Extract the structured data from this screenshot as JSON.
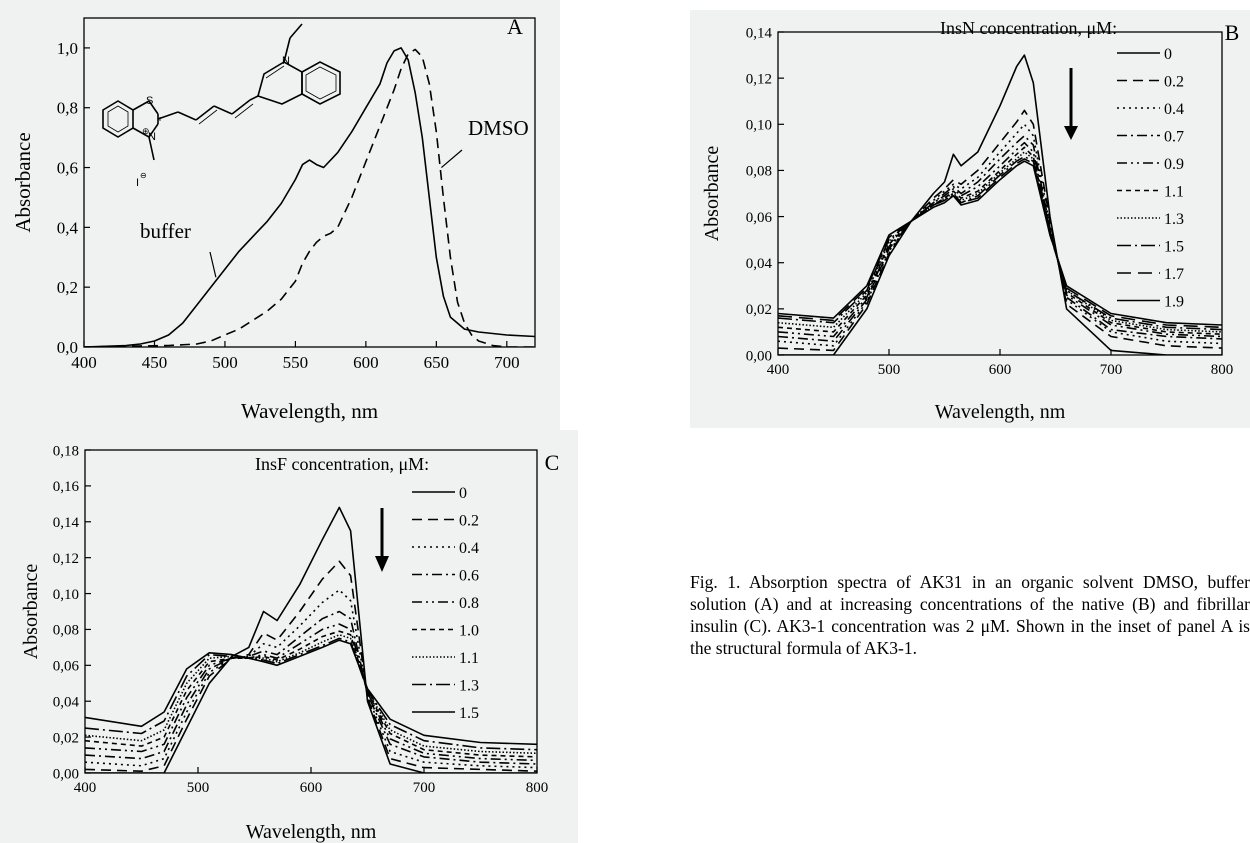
{
  "caption": "Fig. 1. Absorption spectra of AK31 in an organic solvent DMSO, buffer solution (A) and at increasing concentrations of the native (B) and fibrillar insulin (C). AK3-1 concentration was 2 μM. Shown in the inset of panel A is the structural formula of AK3-1.",
  "chart_data": [
    {
      "id": "A",
      "type": "line",
      "panel_label": "A",
      "xlabel": "Wavelength, nm",
      "ylabel": "Absorbance",
      "xlim": [
        400,
        720
      ],
      "ylim": [
        0,
        1.1
      ],
      "x_ticks": [
        "400",
        "450",
        "500",
        "550",
        "600",
        "650",
        "700"
      ],
      "y_ticks": [
        "0,0",
        "0,2",
        "0,4",
        "0,6",
        "0,8",
        "1,0"
      ],
      "x_tick_values": [
        400,
        450,
        500,
        550,
        600,
        650,
        700
      ],
      "y_tick_values": [
        0,
        0.2,
        0.4,
        0.6,
        0.8,
        1.0
      ],
      "annotations": [
        {
          "text": "buffer",
          "series": "buffer",
          "x": 495,
          "y": 0.24
        },
        {
          "text": "DMSO",
          "series": "DMSO",
          "x": 655,
          "y": 0.6
        }
      ],
      "inset": "structural formula of AK3-1",
      "series": [
        {
          "name": "buffer",
          "dash": "solid",
          "x": [
            400,
            430,
            440,
            450,
            460,
            470,
            480,
            490,
            500,
            510,
            520,
            530,
            540,
            550,
            555,
            560,
            565,
            570,
            580,
            590,
            600,
            610,
            615,
            620,
            625,
            630,
            635,
            640,
            645,
            650,
            655,
            660,
            670,
            680,
            690,
            700,
            720
          ],
          "y": [
            0,
            0.005,
            0.01,
            0.02,
            0.04,
            0.08,
            0.14,
            0.2,
            0.26,
            0.32,
            0.37,
            0.42,
            0.48,
            0.56,
            0.61,
            0.625,
            0.61,
            0.6,
            0.65,
            0.72,
            0.8,
            0.88,
            0.95,
            0.99,
            1.0,
            0.96,
            0.85,
            0.7,
            0.5,
            0.3,
            0.17,
            0.1,
            0.06,
            0.05,
            0.045,
            0.04,
            0.035
          ]
        },
        {
          "name": "DMSO",
          "dash": "dashed",
          "x": [
            400,
            460,
            480,
            490,
            500,
            510,
            520,
            530,
            540,
            550,
            555,
            560,
            565,
            570,
            575,
            580,
            590,
            600,
            610,
            620,
            625,
            630,
            635,
            640,
            645,
            650,
            655,
            660,
            665,
            670,
            675,
            680,
            690,
            700,
            720
          ],
          "y": [
            0,
            0.005,
            0.01,
            0.02,
            0.04,
            0.06,
            0.09,
            0.12,
            0.16,
            0.22,
            0.28,
            0.32,
            0.35,
            0.37,
            0.38,
            0.4,
            0.5,
            0.62,
            0.74,
            0.86,
            0.93,
            0.98,
            0.995,
            0.97,
            0.88,
            0.72,
            0.5,
            0.3,
            0.15,
            0.08,
            0.04,
            0.02,
            0.005,
            0,
            0
          ]
        }
      ]
    },
    {
      "id": "B",
      "type": "line",
      "panel_label": "B",
      "legend_title": "InsN concentration, μM:",
      "xlabel": "Wavelength, nm",
      "ylabel": "Absorbance",
      "xlim": [
        400,
        800
      ],
      "ylim": [
        0,
        0.14
      ],
      "x_ticks": [
        "400",
        "500",
        "600",
        "700",
        "800"
      ],
      "y_ticks": [
        "0,00",
        "0,02",
        "0,04",
        "0,06",
        "0,08",
        "0,10",
        "0,12",
        "0,14"
      ],
      "x_tick_values": [
        400,
        500,
        600,
        700,
        800
      ],
      "y_tick_values": [
        0,
        0.02,
        0.04,
        0.06,
        0.08,
        0.1,
        0.12,
        0.14
      ],
      "x": [
        400,
        450,
        480,
        500,
        520,
        540,
        550,
        558,
        565,
        580,
        600,
        615,
        622,
        630,
        645,
        660,
        700,
        750,
        800
      ],
      "series": [
        {
          "name": "0",
          "dash": "solid",
          "y": [
            0.0,
            0.0,
            0.02,
            0.043,
            0.058,
            0.07,
            0.075,
            0.087,
            0.082,
            0.088,
            0.108,
            0.125,
            0.13,
            0.118,
            0.06,
            0.02,
            0.002,
            0.0,
            0.0
          ]
        },
        {
          "name": "0.2",
          "dash": "dashed",
          "y": [
            0.003,
            0.002,
            0.022,
            0.044,
            0.058,
            0.068,
            0.072,
            0.076,
            0.074,
            0.08,
            0.092,
            0.101,
            0.106,
            0.1,
            0.058,
            0.022,
            0.008,
            0.004,
            0.003
          ]
        },
        {
          "name": "0.4",
          "dash": "dotted",
          "y": [
            0.006,
            0.004,
            0.023,
            0.045,
            0.058,
            0.067,
            0.071,
            0.074,
            0.072,
            0.077,
            0.088,
            0.096,
            0.1,
            0.095,
            0.056,
            0.024,
            0.01,
            0.006,
            0.005
          ]
        },
        {
          "name": "0.7",
          "dash": "dashdot",
          "y": [
            0.008,
            0.006,
            0.024,
            0.046,
            0.058,
            0.066,
            0.07,
            0.073,
            0.07,
            0.075,
            0.085,
            0.092,
            0.095,
            0.091,
            0.055,
            0.025,
            0.011,
            0.008,
            0.007
          ]
        },
        {
          "name": "0.9",
          "dash": "dashdotdot",
          "y": [
            0.01,
            0.008,
            0.025,
            0.047,
            0.058,
            0.066,
            0.069,
            0.072,
            0.069,
            0.073,
            0.082,
            0.089,
            0.092,
            0.088,
            0.054,
            0.026,
            0.013,
            0.009,
            0.008
          ]
        },
        {
          "name": "1.1",
          "dash": "shortdash",
          "y": [
            0.012,
            0.01,
            0.026,
            0.048,
            0.058,
            0.065,
            0.068,
            0.071,
            0.068,
            0.071,
            0.08,
            0.087,
            0.09,
            0.086,
            0.054,
            0.027,
            0.014,
            0.01,
            0.009
          ]
        },
        {
          "name": "1.3",
          "dash": "densedot",
          "y": [
            0.014,
            0.012,
            0.027,
            0.049,
            0.058,
            0.065,
            0.068,
            0.07,
            0.067,
            0.07,
            0.079,
            0.085,
            0.088,
            0.085,
            0.053,
            0.028,
            0.015,
            0.011,
            0.01
          ]
        },
        {
          "name": "1.5",
          "dash": "longdashdot",
          "y": [
            0.016,
            0.014,
            0.028,
            0.05,
            0.058,
            0.065,
            0.067,
            0.07,
            0.066,
            0.069,
            0.078,
            0.084,
            0.086,
            0.084,
            0.053,
            0.028,
            0.016,
            0.012,
            0.011
          ]
        },
        {
          "name": "1.7",
          "dash": "longdash",
          "y": [
            0.017,
            0.015,
            0.029,
            0.051,
            0.058,
            0.065,
            0.067,
            0.069,
            0.066,
            0.068,
            0.077,
            0.083,
            0.085,
            0.083,
            0.052,
            0.029,
            0.017,
            0.013,
            0.012
          ]
        },
        {
          "name": "1.9",
          "dash": "solid",
          "y": [
            0.018,
            0.016,
            0.03,
            0.052,
            0.058,
            0.064,
            0.066,
            0.069,
            0.065,
            0.067,
            0.076,
            0.082,
            0.084,
            0.082,
            0.052,
            0.03,
            0.018,
            0.014,
            0.013
          ]
        }
      ]
    },
    {
      "id": "C",
      "type": "line",
      "panel_label": "C",
      "legend_title": "InsF concentration, μM:",
      "xlabel": "Wavelength, nm",
      "ylabel": "Absorbance",
      "xlim": [
        400,
        800
      ],
      "ylim": [
        0,
        0.18
      ],
      "x_ticks": [
        "400",
        "500",
        "600",
        "700",
        "800"
      ],
      "y_ticks": [
        "0,00",
        "0,02",
        "0,04",
        "0,06",
        "0,08",
        "0,10",
        "0,12",
        "0,14",
        "0,16",
        "0,18"
      ],
      "x_tick_values": [
        400,
        500,
        600,
        700,
        800
      ],
      "y_tick_values": [
        0,
        0.02,
        0.04,
        0.06,
        0.08,
        0.1,
        0.12,
        0.14,
        0.16,
        0.18
      ],
      "x": [
        400,
        450,
        470,
        490,
        510,
        530,
        545,
        558,
        570,
        590,
        610,
        625,
        635,
        650,
        670,
        700,
        750,
        800
      ],
      "series": [
        {
          "name": "0",
          "dash": "solid",
          "y": [
            0.0,
            0.0,
            0.0,
            0.025,
            0.05,
            0.065,
            0.07,
            0.09,
            0.085,
            0.105,
            0.13,
            0.148,
            0.135,
            0.04,
            0.005,
            0.0,
            0.0,
            0.0
          ]
        },
        {
          "name": "0.2",
          "dash": "dashed",
          "y": [
            0.002,
            0.001,
            0.004,
            0.03,
            0.054,
            0.064,
            0.066,
            0.078,
            0.074,
            0.09,
            0.108,
            0.118,
            0.11,
            0.042,
            0.008,
            0.003,
            0.002,
            0.001
          ]
        },
        {
          "name": "0.4",
          "dash": "dotted",
          "y": [
            0.006,
            0.004,
            0.008,
            0.034,
            0.056,
            0.064,
            0.065,
            0.072,
            0.07,
            0.082,
            0.095,
            0.102,
            0.096,
            0.043,
            0.012,
            0.006,
            0.004,
            0.003
          ]
        },
        {
          "name": "0.6",
          "dash": "dashdot",
          "y": [
            0.01,
            0.008,
            0.012,
            0.038,
            0.058,
            0.064,
            0.065,
            0.068,
            0.066,
            0.076,
            0.086,
            0.09,
            0.086,
            0.044,
            0.016,
            0.009,
            0.006,
            0.005
          ]
        },
        {
          "name": "0.8",
          "dash": "dashdotdot",
          "y": [
            0.014,
            0.012,
            0.016,
            0.042,
            0.06,
            0.064,
            0.064,
            0.066,
            0.064,
            0.072,
            0.08,
            0.083,
            0.08,
            0.045,
            0.019,
            0.011,
            0.008,
            0.007
          ]
        },
        {
          "name": "1.0",
          "dash": "shortdash",
          "y": [
            0.018,
            0.015,
            0.02,
            0.046,
            0.062,
            0.064,
            0.064,
            0.065,
            0.063,
            0.069,
            0.076,
            0.079,
            0.077,
            0.045,
            0.022,
            0.013,
            0.01,
            0.009
          ]
        },
        {
          "name": "1.1",
          "dash": "densedot",
          "y": [
            0.021,
            0.018,
            0.024,
            0.05,
            0.064,
            0.065,
            0.064,
            0.064,
            0.062,
            0.067,
            0.073,
            0.077,
            0.075,
            0.046,
            0.024,
            0.015,
            0.012,
            0.011
          ]
        },
        {
          "name": "1.3",
          "dash": "longdashdot",
          "y": [
            0.025,
            0.022,
            0.029,
            0.054,
            0.066,
            0.065,
            0.064,
            0.063,
            0.061,
            0.066,
            0.071,
            0.075,
            0.073,
            0.046,
            0.027,
            0.018,
            0.014,
            0.013
          ]
        },
        {
          "name": "1.5",
          "dash": "solid",
          "y": [
            0.031,
            0.026,
            0.034,
            0.058,
            0.067,
            0.066,
            0.064,
            0.062,
            0.06,
            0.065,
            0.07,
            0.074,
            0.072,
            0.047,
            0.03,
            0.021,
            0.017,
            0.016
          ]
        }
      ]
    }
  ]
}
